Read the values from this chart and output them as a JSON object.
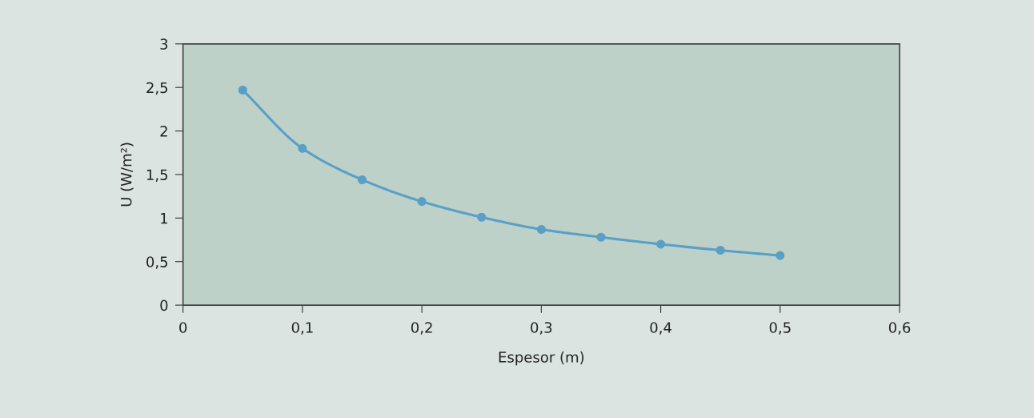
{
  "chart_data": {
    "type": "line",
    "xlabel": "Espesor (m)",
    "ylabel": "U (W/m²)",
    "x": [
      0.05,
      0.1,
      0.15,
      0.2,
      0.25,
      0.3,
      0.35,
      0.4,
      0.45,
      0.5
    ],
    "series": [
      {
        "color": "#5a9fc6",
        "values": [
          2.47,
          1.8,
          1.44,
          1.19,
          1.01,
          0.87,
          0.78,
          0.7,
          0.63,
          0.57
        ]
      }
    ],
    "xlim": [
      0,
      0.6
    ],
    "xticks": [
      0,
      {
        "value": 0.1,
        "label": "0,1"
      },
      {
        "value": 0.2,
        "label": "0,2"
      },
      {
        "value": 0.3,
        "label": "0,3"
      },
      {
        "value": 0.4,
        "label": "0,4"
      },
      {
        "value": 0.5,
        "label": "0,5"
      },
      {
        "value": 0.6,
        "label": "0,6"
      }
    ],
    "ylim": [
      0,
      3
    ],
    "yticks": [
      0,
      {
        "value": 0.5,
        "label": "0,5"
      },
      1,
      {
        "value": 1.5,
        "label": "1,5"
      },
      2,
      {
        "value": 2.5,
        "label": "2,5"
      },
      3
    ],
    "marker": "circle",
    "line_style": "solid",
    "grid": false,
    "legend": false
  }
}
